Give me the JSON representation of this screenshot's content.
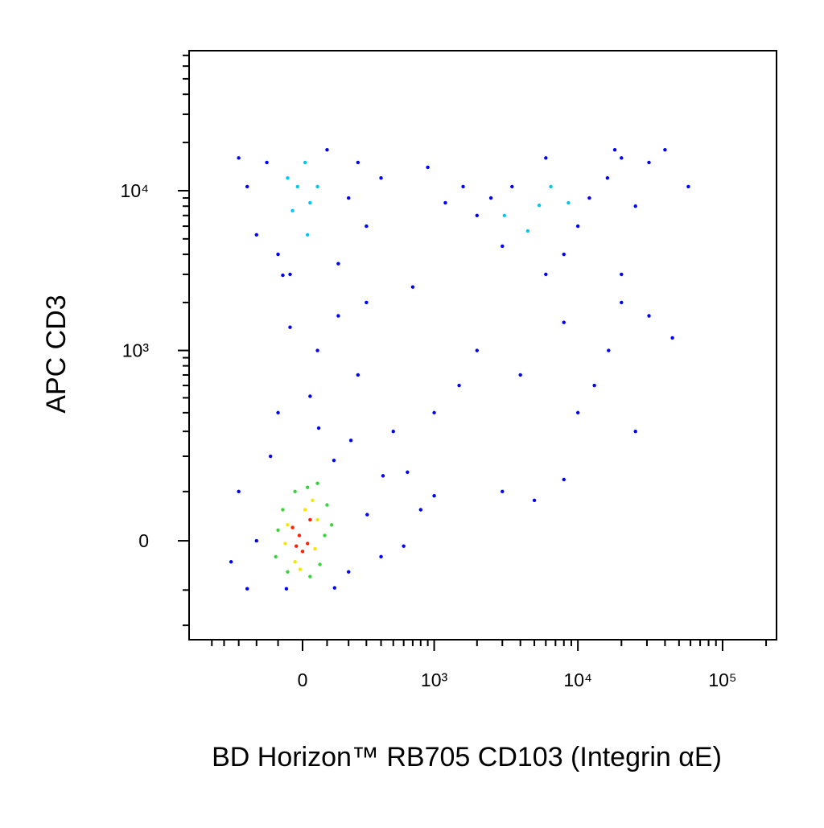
{
  "chart_data": {
    "type": "scatter",
    "x_label": "BD Horizon™ RB705 CD103 (Integrin αE)",
    "y_label": "APC CD3",
    "xscale": {
      "type": "arcsinh",
      "cofactor": 250
    },
    "yscale": {
      "type": "arcsinh",
      "cofactor": 130
    },
    "xlim": [
      -740,
      236000
    ],
    "ylim": [
      -254,
      74900
    ],
    "xticks": [
      0,
      {
        "value": 1000,
        "label": "10³"
      },
      {
        "value": 10000,
        "label": "10⁴"
      },
      {
        "value": 100000,
        "label": "10⁵"
      }
    ],
    "yticks": [
      0,
      {
        "value": 1000,
        "label": "10³"
      },
      {
        "value": 10000,
        "label": "10⁴"
      }
    ],
    "xminorticks": [
      -500,
      -400,
      -300,
      -200,
      -100,
      100,
      200,
      300,
      400,
      500,
      600,
      700,
      800,
      900,
      2000,
      3000,
      4000,
      5000,
      6000,
      7000,
      8000,
      9000,
      20000,
      30000,
      40000,
      50000,
      60000,
      70000,
      80000,
      90000,
      200000
    ],
    "yminorticks": [
      -200,
      -100,
      100,
      200,
      300,
      400,
      500,
      600,
      700,
      800,
      900,
      2000,
      3000,
      4000,
      5000,
      6000,
      7000,
      8000,
      9000,
      20000,
      30000,
      40000,
      50000,
      60000,
      70000
    ],
    "series": [
      {
        "color": "#0000ff",
        "x": [
          -200,
          -300,
          200,
          305,
          415,
          -250,
          130,
          65,
          -133,
          212,
          640,
          400,
          -65,
          133,
          500,
          -350,
          800,
          1000,
          30,
          -100,
          250,
          60,
          150,
          -50,
          300,
          -80,
          -250,
          -150,
          200,
          300,
          -200,
          100,
          -100,
          400,
          -300,
          250,
          -50,
          150,
          1200,
          1600,
          2000,
          2500,
          3500,
          10000,
          12000,
          16000,
          20000,
          31000,
          40000,
          58000,
          8000,
          6000,
          3000,
          20000,
          16300,
          31000,
          8000,
          2000,
          1500,
          4000,
          10000,
          25000,
          3000,
          8000,
          600,
          1000,
          20000,
          45000,
          13000,
          5000,
          700,
          25000,
          18000,
          6000,
          900
        ],
        "y": [
          0,
          100,
          -60,
          50,
          140,
          -97,
          186,
          316,
          200,
          260,
          150,
          -30,
          -97,
          -95,
          300,
          -40,
          60,
          400,
          512,
          400,
          700,
          1000,
          1650,
          1400,
          2000,
          2960,
          10600,
          15000,
          9000,
          6000,
          5300,
          18000,
          4000,
          12000,
          16000,
          15000,
          3000,
          3500,
          8400,
          10600,
          7000,
          9000,
          10600,
          6000,
          9000,
          12000,
          16000,
          15000,
          18000,
          10600,
          4000,
          3000,
          4500,
          3000,
          1000,
          1650,
          1500,
          1000,
          600,
          700,
          400,
          300,
          100,
          130,
          -10,
          90,
          2000,
          1200,
          600,
          80,
          2500,
          8000,
          18000,
          16000,
          14000
        ]
      },
      {
        "color": "#00c8f0",
        "x": [
          -20,
          30,
          -60,
          10,
          60,
          -40,
          20,
          5400,
          8600,
          3100,
          6500,
          4500
        ],
        "y": [
          10600,
          8400,
          12000,
          15000,
          10600,
          7500,
          5300,
          8100,
          8400,
          7000,
          10600,
          5600
        ]
      },
      {
        "color": "#3cd23c",
        "x": [
          -100,
          90,
          20,
          -80,
          -60,
          70,
          100,
          -110,
          30,
          -30,
          120,
          60
        ],
        "y": [
          20,
          10,
          110,
          60,
          -60,
          -45,
          70,
          -30,
          -70,
          100,
          30,
          120
        ]
      },
      {
        "color": "#f5e600",
        "x": [
          -60,
          50,
          10,
          -30,
          60,
          -70,
          40,
          -10
        ],
        "y": [
          30,
          -15,
          60,
          -40,
          40,
          -5,
          80,
          -55
        ]
      },
      {
        "color": "#ff2000",
        "x": [
          -13,
          20,
          -40,
          30,
          0,
          -25
        ],
        "y": [
          10,
          -5,
          25,
          40,
          -20,
          -10
        ]
      }
    ]
  }
}
